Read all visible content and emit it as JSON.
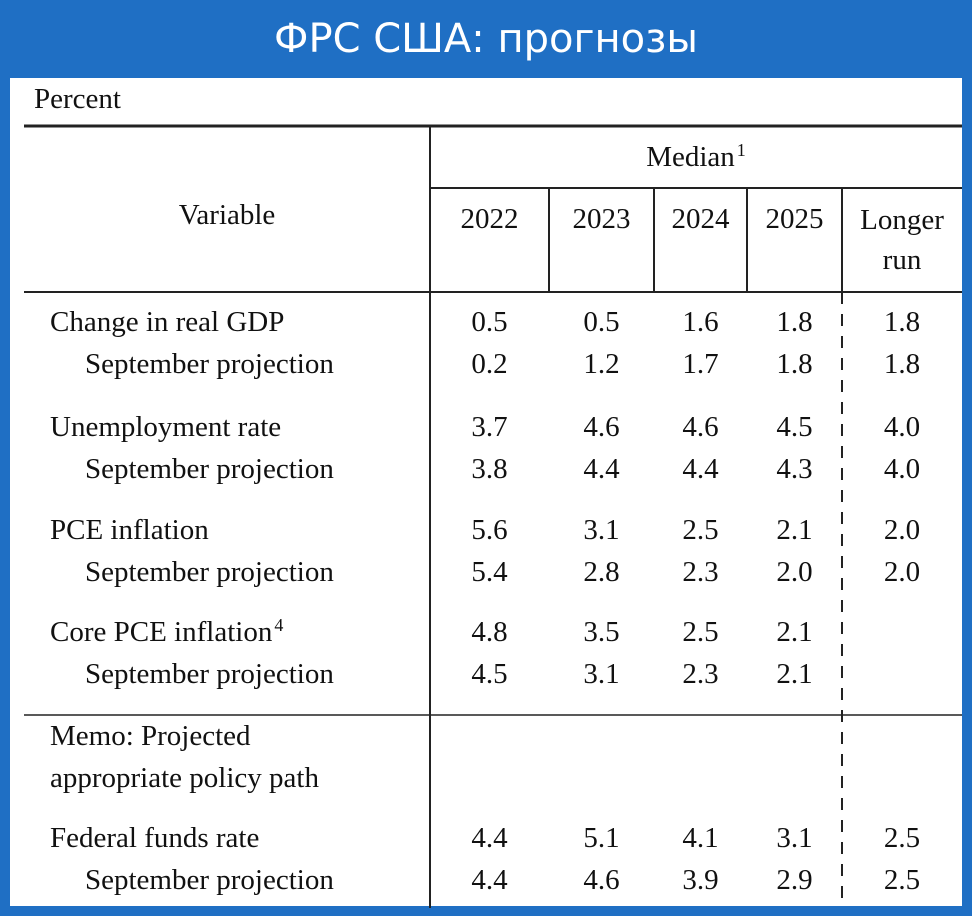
{
  "header": {
    "title": "ФРС США: прогнозы"
  },
  "table": {
    "unit": "Percent",
    "variable_header": "Variable",
    "group_header": "Median",
    "group_header_note": "1",
    "columns": [
      "2022",
      "2023",
      "2024",
      "2025",
      "Longer run"
    ],
    "groups": [
      {
        "main": {
          "label": "Change in real GDP",
          "values": [
            "0.5",
            "0.5",
            "1.6",
            "1.8",
            "1.8"
          ]
        },
        "projection": {
          "label": "September projection",
          "values": [
            "0.2",
            "1.2",
            "1.7",
            "1.8",
            "1.8"
          ]
        }
      },
      {
        "main": {
          "label": "Unemployment rate",
          "values": [
            "3.7",
            "4.6",
            "4.6",
            "4.5",
            "4.0"
          ]
        },
        "projection": {
          "label": "September projection",
          "values": [
            "3.8",
            "4.4",
            "4.4",
            "4.3",
            "4.0"
          ]
        }
      },
      {
        "main": {
          "label": "PCE inflation",
          "values": [
            "5.6",
            "3.1",
            "2.5",
            "2.1",
            "2.0"
          ]
        },
        "projection": {
          "label": "September projection",
          "values": [
            "5.4",
            "2.8",
            "2.3",
            "2.0",
            "2.0"
          ]
        }
      },
      {
        "main": {
          "label": "Core PCE inflation",
          "note": "4",
          "values": [
            "4.8",
            "3.5",
            "2.5",
            "2.1"
          ]
        },
        "projection": {
          "label": "September projection",
          "values": [
            "4.5",
            "3.1",
            "2.3",
            "2.1"
          ]
        }
      }
    ],
    "memo": [
      "Memo: Projected",
      "appropriate policy path"
    ],
    "memo_groups": [
      {
        "main": {
          "label": "Federal funds rate",
          "values": [
            "4.4",
            "5.1",
            "4.1",
            "3.1",
            "2.5"
          ]
        },
        "projection": {
          "label": "September projection",
          "values": [
            "4.4",
            "4.6",
            "3.9",
            "2.9",
            "2.5"
          ]
        }
      }
    ]
  }
}
